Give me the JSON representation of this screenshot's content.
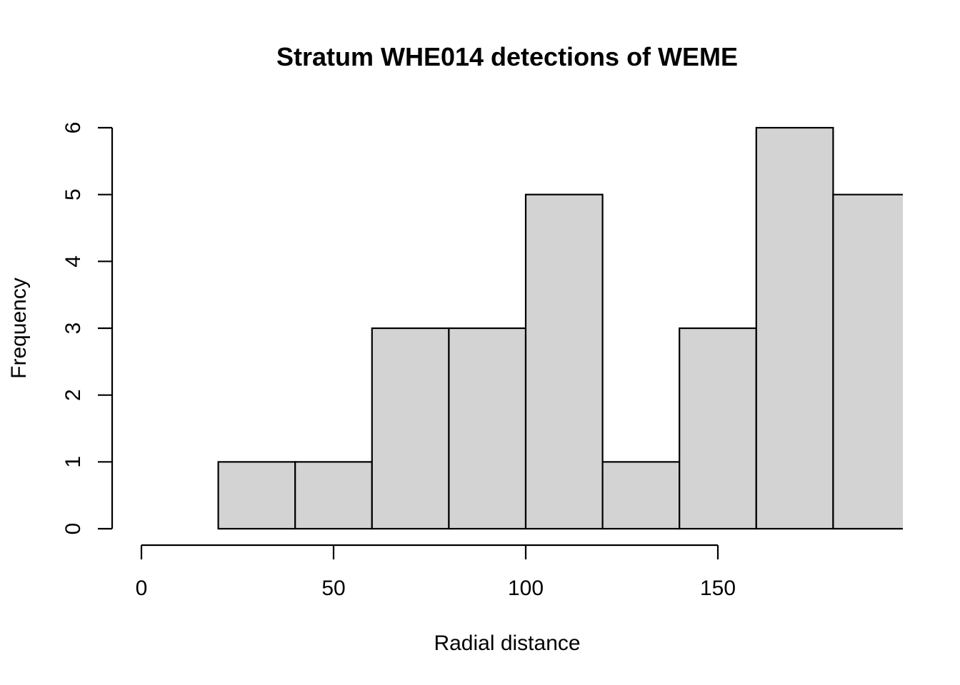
{
  "chart_data": {
    "type": "bar",
    "title": "Stratum WHE014 detections of WEME",
    "xlabel": "Radial distance",
    "ylabel": "Frequency",
    "bins": [
      {
        "start": 20,
        "end": 40,
        "count": 1
      },
      {
        "start": 40,
        "end": 60,
        "count": 1
      },
      {
        "start": 60,
        "end": 80,
        "count": 3
      },
      {
        "start": 80,
        "end": 100,
        "count": 3
      },
      {
        "start": 100,
        "end": 120,
        "count": 5
      },
      {
        "start": 120,
        "end": 140,
        "count": 1
      },
      {
        "start": 140,
        "end": 160,
        "count": 3
      },
      {
        "start": 160,
        "end": 180,
        "count": 6
      },
      {
        "start": 180,
        "end": 200,
        "count": 5
      }
    ],
    "x_ticks": [
      "0",
      "50",
      "100",
      "150"
    ],
    "y_ticks": [
      "0",
      "1",
      "2",
      "3",
      "4",
      "5",
      "6"
    ],
    "xlim": [
      0,
      150
    ],
    "ylim": [
      0,
      6
    ],
    "bar_color": "#d3d3d3",
    "grid": false,
    "legend": false
  }
}
